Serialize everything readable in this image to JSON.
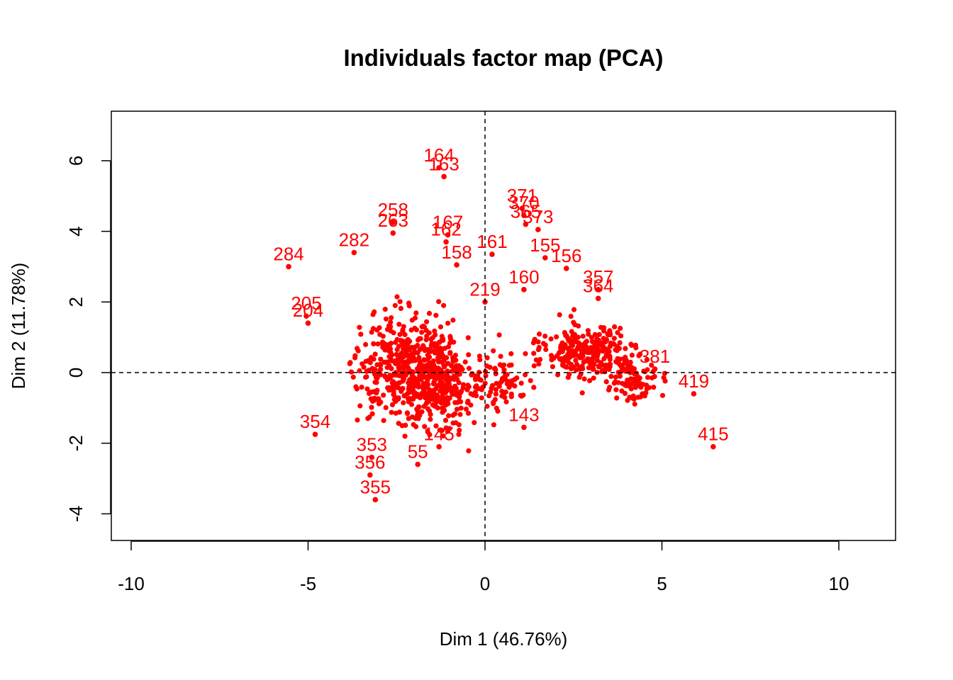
{
  "chart_data": {
    "type": "scatter",
    "title": "Individuals factor map (PCA)",
    "xlabel": "Dim 1 (46.76%)",
    "ylabel": "Dim 2 (11.78%)",
    "xlim": [
      -10.5,
      11.6
    ],
    "ylim": [
      -4.8,
      7.4
    ],
    "xticks": [
      -10,
      -5,
      0,
      5,
      10
    ],
    "yticks": [
      -4,
      -2,
      0,
      2,
      4,
      6
    ],
    "xtick_labels": [
      "-10",
      "-5",
      "0",
      "5",
      "10"
    ],
    "ytick_labels": [
      "-4",
      "-2",
      "0",
      "2",
      "4",
      "6"
    ],
    "reference_lines": {
      "x": 0,
      "y": 0,
      "style": "dashed"
    },
    "grid": false,
    "legend": "none",
    "point_color": "#ff0000",
    "labeled_points": [
      {
        "label": "164",
        "x": -1.3,
        "y": 5.8
      },
      {
        "label": "163",
        "x": -1.16,
        "y": 5.55
      },
      {
        "label": "371",
        "x": 1.05,
        "y": 4.65
      },
      {
        "label": "370",
        "x": 1.1,
        "y": 4.45
      },
      {
        "label": "365",
        "x": 1.15,
        "y": 4.2
      },
      {
        "label": "373",
        "x": 1.5,
        "y": 4.05
      },
      {
        "label": "258",
        "x": -2.6,
        "y": 4.25
      },
      {
        "label": "263",
        "x": -2.6,
        "y": 3.95
      },
      {
        "label": "167",
        "x": -1.05,
        "y": 3.9
      },
      {
        "label": "162",
        "x": -1.1,
        "y": 3.7
      },
      {
        "label": "161",
        "x": 0.2,
        "y": 3.35
      },
      {
        "label": "282",
        "x": -3.7,
        "y": 3.4
      },
      {
        "label": "284",
        "x": -5.55,
        "y": 3.0
      },
      {
        "label": "158",
        "x": -0.8,
        "y": 3.05
      },
      {
        "label": "155",
        "x": 1.7,
        "y": 3.25
      },
      {
        "label": "156",
        "x": 2.3,
        "y": 2.95
      },
      {
        "label": "160",
        "x": 1.1,
        "y": 2.35
      },
      {
        "label": "357",
        "x": 3.2,
        "y": 2.35
      },
      {
        "label": "364",
        "x": 3.2,
        "y": 2.1
      },
      {
        "label": "219",
        "x": 0.0,
        "y": 2.0
      },
      {
        "label": "205",
        "x": -5.05,
        "y": 1.6
      },
      {
        "label": "204",
        "x": -5.0,
        "y": 1.4
      },
      {
        "label": "381",
        "x": 4.8,
        "y": 0.1
      },
      {
        "label": "419",
        "x": 5.9,
        "y": -0.6
      },
      {
        "label": "415",
        "x": 6.45,
        "y": -2.1
      },
      {
        "label": "354",
        "x": -4.8,
        "y": -1.75
      },
      {
        "label": "353",
        "x": -3.2,
        "y": -2.4
      },
      {
        "label": "356",
        "x": -3.25,
        "y": -2.9
      },
      {
        "label": "355",
        "x": -3.1,
        "y": -3.6
      },
      {
        "label": "55",
        "x": -1.9,
        "y": -2.6
      },
      {
        "label": "145",
        "x": -1.3,
        "y": -2.1
      },
      {
        "label": "143",
        "x": 1.1,
        "y": -1.55
      }
    ]
  }
}
